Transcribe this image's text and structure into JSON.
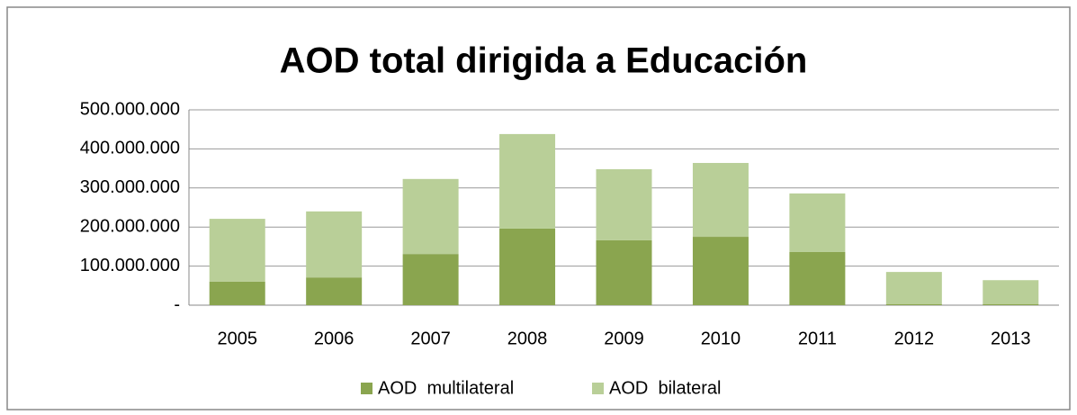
{
  "chart_data": {
    "type": "stacked_bar",
    "title": "AOD total dirigida a Educación",
    "categories": [
      "2005",
      "2006",
      "2007",
      "2008",
      "2009",
      "2010",
      "2011",
      "2012",
      "2013"
    ],
    "series": [
      {
        "name": "AOD  multilateral",
        "color": "#8aa54f",
        "values": [
          60000000,
          71000000,
          131000000,
          196000000,
          166000000,
          175000000,
          136000000,
          3000000,
          3000000
        ]
      },
      {
        "name": "AOD  bilateral",
        "color": "#b9cf98",
        "values": [
          161000000,
          169000000,
          192000000,
          242000000,
          182000000,
          189000000,
          150000000,
          82000000,
          61000000
        ]
      }
    ],
    "ylim": [
      0,
      500000000
    ],
    "yticks": [
      {
        "value": 0,
        "label": "-"
      },
      {
        "value": 100000000,
        "label": "100.000.000"
      },
      {
        "value": 200000000,
        "label": "200.000.000"
      },
      {
        "value": 300000000,
        "label": "300.000.000"
      },
      {
        "value": 400000000,
        "label": "400.000.000"
      },
      {
        "value": 500000000,
        "label": "500.000.000"
      }
    ],
    "grid": true,
    "legend": "bottom"
  }
}
